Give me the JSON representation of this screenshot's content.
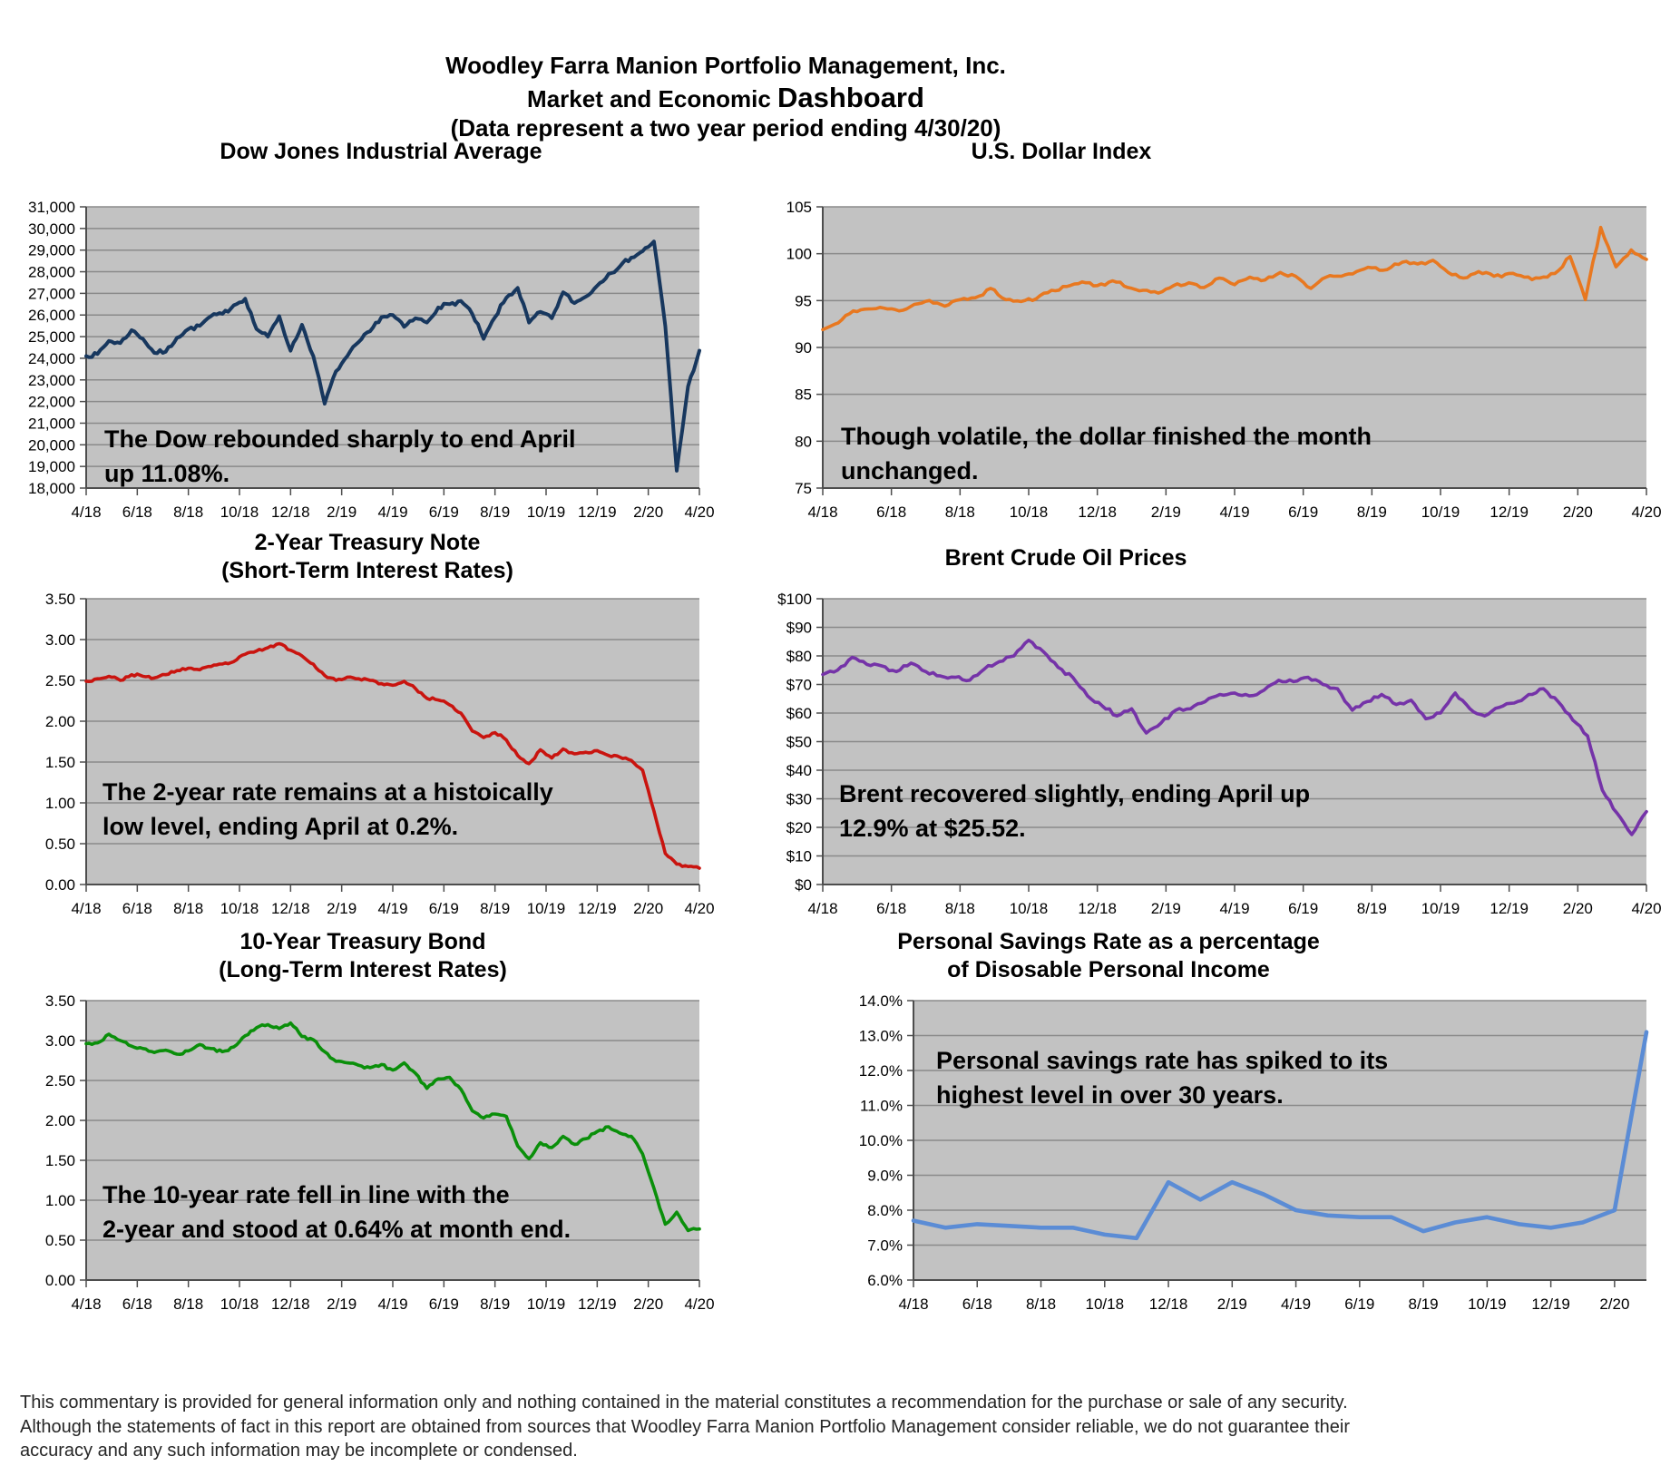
{
  "header": {
    "line1": "Woodley Farra Manion Portfolio Management, Inc.",
    "line2_prefix": "Market and Economic ",
    "line2_emphasis": "Dashboard",
    "line3": "(Data represent a two year period ending 4/30/20)"
  },
  "footer": {
    "lines": [
      "This commentary is provided for general information only and nothing contained in the material constitutes a recommendation for the purchase or sale of any security.",
      "Although the statements of fact in this report are obtained from sources that Woodley Farra Manion Portfolio Management consider reliable, we do not guarantee their",
      "accuracy and any such information may be incomplete or condensed."
    ]
  },
  "colors": {
    "plot_bg": "#C2C2C2",
    "gridline": "#8A8A8A",
    "axis": "#4D4D4D",
    "dow_line": "#17375E",
    "dollar_line": "#E87820",
    "treasury2_line": "#C9140F",
    "brent_line": "#7533A8",
    "treasury10_line": "#0A8F0A",
    "savings_line": "#5B8CD5"
  },
  "chart_data": [
    {
      "id": "dow",
      "type": "line",
      "title_lines": [
        "Dow Jones Industrial Average"
      ],
      "color": "#17375E",
      "ymin": 18000,
      "ymax": 31000,
      "ylabels": [
        "31,000",
        "30,000",
        "29,000",
        "28,000",
        "27,000",
        "26,000",
        "25,000",
        "24,000",
        "23,000",
        "22,000",
        "21,000",
        "20,000",
        "19,000",
        "18,000"
      ],
      "xlabels": [
        "4/18",
        "6/18",
        "8/18",
        "10/18",
        "12/18",
        "2/19",
        "4/19",
        "6/19",
        "8/19",
        "10/19",
        "12/19",
        "2/20",
        "4/20"
      ],
      "values": [
        24100,
        24200,
        24800,
        24700,
        25300,
        24900,
        24250,
        24300,
        24950,
        25350,
        25500,
        25950,
        26050,
        26450,
        26750,
        25350,
        25000,
        25950,
        24350,
        25550,
        24100,
        21900,
        23400,
        24100,
        24750,
        25250,
        25900,
        26000,
        25450,
        25850,
        25650,
        26350,
        26500,
        26650,
        26050,
        24900,
        25900,
        26800,
        27250,
        25650,
        26150,
        25850,
        27050,
        26550,
        26850,
        27350,
        27900,
        28250,
        28650,
        28950,
        29400,
        25500,
        18800,
        22700,
        24350
      ],
      "annotation_lines": [
        "The Dow rebounded sharply to end April",
        "up 11.08%."
      ],
      "grid": "horizontal",
      "legend": "none"
    },
    {
      "id": "dollar",
      "type": "line",
      "title_lines": [
        "U.S. Dollar Index"
      ],
      "color": "#E87820",
      "ymin": 75,
      "ymax": 105,
      "ylabels": [
        "105",
        "100",
        "95",
        "90",
        "85",
        "80",
        "75"
      ],
      "xlabels": [
        "4/18",
        "6/18",
        "8/18",
        "10/18",
        "12/18",
        "2/19",
        "4/19",
        "6/19",
        "8/19",
        "10/19",
        "12/19",
        "2/20",
        "4/20"
      ],
      "values": [
        91.9,
        92.6,
        93.9,
        94.1,
        94.2,
        93.9,
        94.6,
        95.0,
        94.4,
        95.1,
        95.3,
        96.3,
        95.1,
        94.9,
        95.2,
        96.1,
        96.5,
        97.0,
        96.6,
        97.1,
        96.4,
        96.1,
        95.8,
        96.6,
        96.9,
        96.4,
        97.4,
        96.7,
        97.5,
        97.2,
        98.0,
        97.6,
        96.3,
        97.5,
        97.6,
        98.1,
        98.5,
        98.3,
        99.1,
        98.9,
        99.3,
        98.0,
        97.4,
        98.1,
        97.6,
        97.9,
        97.5,
        97.4,
        97.9,
        99.7,
        95.1,
        102.8,
        98.6,
        100.4,
        99.4
      ],
      "annotation_lines": [
        "Though volatile, the dollar finished the month",
        "unchanged."
      ],
      "grid": "horizontal",
      "legend": "none"
    },
    {
      "id": "treasury2",
      "type": "line",
      "title_lines": [
        "2-Year Treasury Note",
        "(Short-Term Interest Rates)"
      ],
      "color": "#C9140F",
      "ymin": 0,
      "ymax": 3.5,
      "ylabels": [
        "3.50",
        "3.00",
        "2.50",
        "2.00",
        "1.50",
        "1.00",
        "0.50",
        "0.00"
      ],
      "xlabels": [
        "4/18",
        "6/18",
        "8/18",
        "10/18",
        "12/18",
        "2/19",
        "4/19",
        "6/19",
        "8/19",
        "10/19",
        "12/19",
        "2/20",
        "4/20"
      ],
      "values": [
        2.49,
        2.52,
        2.55,
        2.5,
        2.57,
        2.55,
        2.53,
        2.57,
        2.62,
        2.65,
        2.63,
        2.67,
        2.7,
        2.73,
        2.82,
        2.86,
        2.9,
        2.95,
        2.87,
        2.8,
        2.7,
        2.56,
        2.5,
        2.54,
        2.52,
        2.5,
        2.46,
        2.44,
        2.49,
        2.4,
        2.28,
        2.26,
        2.2,
        2.1,
        1.88,
        1.8,
        1.86,
        1.77,
        1.58,
        1.48,
        1.65,
        1.55,
        1.66,
        1.6,
        1.62,
        1.64,
        1.58,
        1.56,
        1.52,
        1.4,
        0.9,
        0.38,
        0.25,
        0.22,
        0.2
      ],
      "annotation_lines": [
        "The 2-year rate remains at a histoically",
        "low level, ending April at 0.2%."
      ],
      "grid": "horizontal",
      "legend": "none"
    },
    {
      "id": "brent",
      "type": "line",
      "title_lines": [
        "Brent Crude Oil Prices"
      ],
      "color": "#7533A8",
      "ymin": 0,
      "ymax": 100,
      "ylabels": [
        "$100",
        "$90",
        "$80",
        "$70",
        "$60",
        "$50",
        "$40",
        "$30",
        "$20",
        "$10",
        "$0"
      ],
      "xlabels": [
        "4/18",
        "6/18",
        "8/18",
        "10/18",
        "12/18",
        "2/19",
        "4/19",
        "6/19",
        "8/19",
        "10/19",
        "12/19",
        "2/20",
        "4/20"
      ],
      "values": [
        73.5,
        75.0,
        79.5,
        77.0,
        76.5,
        74.5,
        77.5,
        74.5,
        73.0,
        72.5,
        71.5,
        75.5,
        78.0,
        80.0,
        85.5,
        81.5,
        76.0,
        72.5,
        66.0,
        62.5,
        59.0,
        61.5,
        53.0,
        56.5,
        61.0,
        61.5,
        64.0,
        66.5,
        67.0,
        66.0,
        68.0,
        71.5,
        71.0,
        72.5,
        70.0,
        68.5,
        61.0,
        64.0,
        66.5,
        63.0,
        64.5,
        58.0,
        60.0,
        67.0,
        61.5,
        59.0,
        62.0,
        63.5,
        66.5,
        68.5,
        64.0,
        57.5,
        52.0,
        33.0,
        25.0,
        17.5,
        25.5
      ],
      "annotation_lines": [
        "Brent recovered slightly, ending April up",
        "12.9% at $25.52."
      ],
      "grid": "horizontal",
      "legend": "none"
    },
    {
      "id": "treasury10",
      "type": "line",
      "title_lines": [
        "10-Year Treasury Bond",
        "(Long-Term Interest Rates)"
      ],
      "color": "#0A8F0A",
      "ymin": 0,
      "ymax": 3.5,
      "ylabels": [
        "3.50",
        "3.00",
        "2.50",
        "2.00",
        "1.50",
        "1.00",
        "0.50",
        "0.00"
      ],
      "xlabels": [
        "4/18",
        "6/18",
        "8/18",
        "10/18",
        "12/18",
        "2/19",
        "4/19",
        "6/19",
        "8/19",
        "10/19",
        "12/19",
        "2/20",
        "4/20"
      ],
      "values": [
        2.96,
        2.97,
        3.08,
        3.0,
        2.93,
        2.9,
        2.85,
        2.88,
        2.83,
        2.87,
        2.95,
        2.9,
        2.86,
        2.92,
        3.06,
        3.16,
        3.2,
        3.15,
        3.22,
        3.05,
        3.01,
        2.86,
        2.74,
        2.72,
        2.69,
        2.66,
        2.7,
        2.63,
        2.72,
        2.59,
        2.4,
        2.52,
        2.54,
        2.39,
        2.12,
        2.03,
        2.08,
        2.05,
        1.68,
        1.52,
        1.72,
        1.66,
        1.8,
        1.7,
        1.77,
        1.86,
        1.92,
        1.84,
        1.8,
        1.58,
        1.15,
        0.7,
        0.85,
        0.62,
        0.64
      ],
      "annotation_lines": [
        "The 10-year rate fell in line with the",
        "2-year and stood at 0.64% at month end."
      ],
      "grid": "horizontal",
      "legend": "none"
    },
    {
      "id": "savings",
      "type": "line",
      "title_lines": [
        "Personal Savings Rate as a percentage",
        "of Disosable Personal Income"
      ],
      "color": "#5B8CD5",
      "ymin": 6,
      "ymax": 14,
      "ylabels": [
        "14.0%",
        "13.0%",
        "12.0%",
        "11.0%",
        "10.0%",
        "9.0%",
        "8.0%",
        "7.0%",
        "6.0%"
      ],
      "xlabels": [
        "4/18",
        "6/18",
        "8/18",
        "10/18",
        "12/18",
        "2/19",
        "4/19",
        "6/19",
        "8/19",
        "10/19",
        "12/19",
        "2/20"
      ],
      "values": [
        7.7,
        7.5,
        7.6,
        7.55,
        7.5,
        7.5,
        7.3,
        7.2,
        8.8,
        8.3,
        8.8,
        8.45,
        8.0,
        7.85,
        7.8,
        7.8,
        7.4,
        7.65,
        7.8,
        7.6,
        7.5,
        7.65,
        8.0,
        13.1
      ],
      "annotation_lines": [
        "Personal savings rate has spiked to its",
        "highest level in over 30 years."
      ],
      "grid": "horizontal",
      "legend": "none"
    }
  ]
}
